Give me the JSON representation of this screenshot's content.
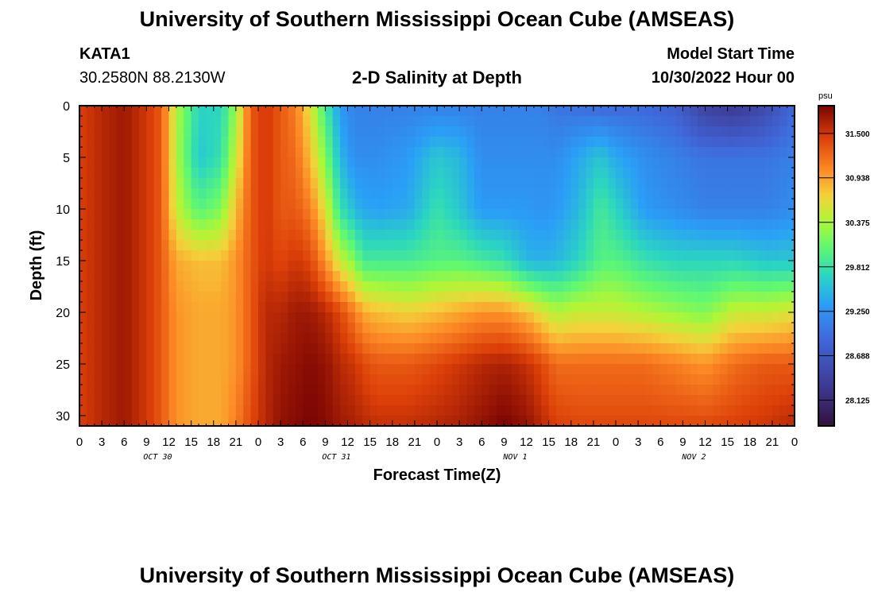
{
  "title": "University of Southern Mississippi Ocean Cube (AMSEAS)",
  "footer_title": "University of Southern Mississippi Ocean Cube (AMSEAS)",
  "station": {
    "name": "KATA1",
    "coords": "30.2580N  88.2130W"
  },
  "plot_title": "2-D Salinity at Depth",
  "model": {
    "label": "Model Start Time",
    "value": "10/30/2022 Hour 00"
  },
  "chart_data": {
    "type": "heatmap",
    "title": "2-D Salinity at Depth",
    "xlabel": "Forecast Time(Z)",
    "ylabel": "Depth (ft)",
    "x_hours_range": [
      0,
      96
    ],
    "y_range": [
      0,
      31
    ],
    "x_tick_labels": [
      "0",
      "3",
      "6",
      "9",
      "12",
      "15",
      "18",
      "21",
      "0",
      "3",
      "6",
      "9",
      "12",
      "15",
      "18",
      "21",
      "0",
      "3",
      "6",
      "9",
      "12",
      "15",
      "18",
      "21",
      "0",
      "3",
      "6",
      "9",
      "12",
      "15",
      "18",
      "21",
      "0"
    ],
    "y_ticks": [
      0,
      5,
      10,
      15,
      20,
      25,
      30
    ],
    "day_labels": [
      "OCT 30",
      "OCT 31",
      "NOV 1",
      "NOV 2"
    ],
    "colorbar": {
      "unit": "psu",
      "ticks": [
        "31.500",
        "30.938",
        "30.375",
        "29.812",
        "29.250",
        "28.688",
        "28.125"
      ],
      "range": [
        27.8,
        31.85
      ]
    },
    "x_hours": [
      0,
      3,
      6,
      9,
      11,
      13,
      16,
      19,
      21,
      23,
      25,
      27,
      29,
      31,
      33,
      35,
      37,
      38,
      40,
      44,
      48,
      51,
      54,
      57,
      60,
      62,
      64,
      67,
      70,
      72,
      76,
      80,
      84,
      88,
      92,
      96
    ],
    "depths": [
      0,
      5,
      10,
      15,
      20,
      25,
      31
    ],
    "salinity": [
      [
        31.45,
        31.45,
        31.45,
        31.45,
        31.45,
        31.45,
        31.45
      ],
      [
        31.6,
        31.6,
        31.6,
        31.6,
        31.6,
        31.6,
        31.6
      ],
      [
        31.7,
        31.7,
        31.7,
        31.7,
        31.7,
        31.7,
        31.7
      ],
      [
        31.5,
        31.5,
        31.5,
        31.5,
        31.5,
        31.5,
        31.5
      ],
      [
        31.3,
        31.3,
        31.3,
        31.3,
        31.3,
        31.3,
        31.3
      ],
      [
        30.4,
        30.4,
        30.5,
        30.9,
        31.0,
        31.0,
        31.0
      ],
      [
        29.7,
        29.6,
        30.0,
        30.8,
        30.9,
        30.9,
        30.9
      ],
      [
        29.7,
        29.8,
        30.2,
        30.8,
        30.9,
        30.9,
        30.9
      ],
      [
        30.3,
        30.5,
        30.8,
        31.0,
        31.0,
        31.0,
        31.1
      ],
      [
        31.3,
        31.3,
        31.3,
        31.3,
        31.3,
        31.3,
        31.4
      ],
      [
        31.5,
        31.5,
        31.5,
        31.5,
        31.6,
        31.6,
        31.6
      ],
      [
        31.3,
        31.3,
        31.3,
        31.4,
        31.6,
        31.7,
        31.75
      ],
      [
        31.1,
        31.2,
        31.3,
        31.5,
        31.7,
        31.75,
        31.8
      ],
      [
        30.6,
        30.8,
        31.1,
        31.4,
        31.7,
        31.8,
        31.85
      ],
      [
        29.9,
        30.2,
        30.6,
        31.0,
        31.6,
        31.75,
        31.8
      ],
      [
        29.3,
        29.5,
        29.8,
        30.5,
        31.4,
        31.6,
        31.7
      ],
      [
        29.1,
        29.2,
        29.5,
        30.2,
        31.1,
        31.5,
        31.65
      ],
      [
        29.1,
        29.2,
        29.4,
        29.9,
        30.9,
        31.4,
        31.6
      ],
      [
        29.1,
        29.2,
        29.35,
        29.9,
        30.8,
        31.3,
        31.55
      ],
      [
        29.1,
        29.3,
        29.4,
        29.9,
        30.7,
        31.3,
        31.55
      ],
      [
        29.1,
        29.6,
        29.8,
        30.0,
        30.8,
        31.4,
        31.6
      ],
      [
        29.1,
        29.5,
        29.6,
        30.0,
        30.9,
        31.5,
        31.65
      ],
      [
        29.1,
        29.2,
        29.3,
        29.9,
        31.0,
        31.6,
        31.75
      ],
      [
        29.1,
        29.2,
        29.3,
        29.8,
        31.0,
        31.65,
        31.85
      ],
      [
        29.1,
        29.2,
        29.3,
        29.5,
        30.8,
        31.55,
        31.75
      ],
      [
        29.1,
        29.2,
        29.25,
        29.45,
        30.6,
        31.4,
        31.6
      ],
      [
        29.0,
        29.2,
        29.3,
        29.5,
        30.4,
        31.2,
        31.45
      ],
      [
        28.95,
        29.4,
        29.5,
        29.7,
        30.5,
        31.2,
        31.4
      ],
      [
        28.9,
        29.6,
        29.9,
        30.0,
        30.5,
        31.2,
        31.4
      ],
      [
        28.9,
        29.4,
        29.7,
        30.0,
        30.5,
        31.2,
        31.4
      ],
      [
        28.9,
        29.2,
        29.3,
        29.8,
        30.4,
        31.2,
        31.4
      ],
      [
        28.8,
        29.1,
        29.2,
        29.7,
        30.3,
        31.1,
        31.4
      ],
      [
        28.4,
        29.0,
        29.1,
        29.7,
        30.2,
        31.0,
        31.4
      ],
      [
        28.3,
        29.0,
        29.1,
        29.7,
        30.5,
        31.2,
        31.45
      ],
      [
        28.5,
        29.0,
        29.1,
        29.6,
        30.5,
        31.3,
        31.5
      ],
      [
        28.9,
        29.1,
        29.2,
        29.6,
        30.6,
        31.3,
        31.6
      ]
    ]
  }
}
